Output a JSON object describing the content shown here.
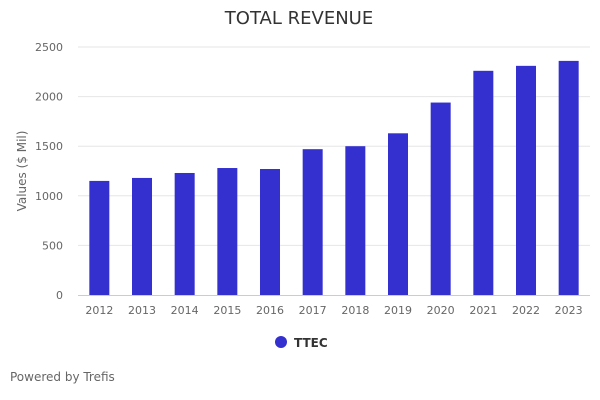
{
  "chart_data": {
    "type": "bar",
    "title": "TOTAL REVENUE",
    "xlabel": "",
    "ylabel": "Values ($ Mil)",
    "categories": [
      "2012",
      "2013",
      "2014",
      "2015",
      "2016",
      "2017",
      "2018",
      "2019",
      "2020",
      "2021",
      "2022",
      "2023"
    ],
    "series": [
      {
        "name": "TTEC",
        "color": "#3430cf",
        "values": [
          1150,
          1180,
          1230,
          1280,
          1270,
          1470,
          1500,
          1630,
          1940,
          2260,
          2310,
          2360
        ]
      }
    ],
    "ylim": [
      0,
      2500
    ],
    "yticks": [
      0,
      500,
      1000,
      1500,
      2000,
      2500
    ],
    "ytick_labels": [
      "0",
      "500",
      "1000",
      "1500",
      "2000",
      "2500"
    ],
    "grid": true,
    "legend_position": "bottom-center"
  },
  "footer": {
    "credit": "Powered by Trefis"
  },
  "colors": {
    "grid": "#e6e6e6",
    "axis": "#cccccc"
  }
}
